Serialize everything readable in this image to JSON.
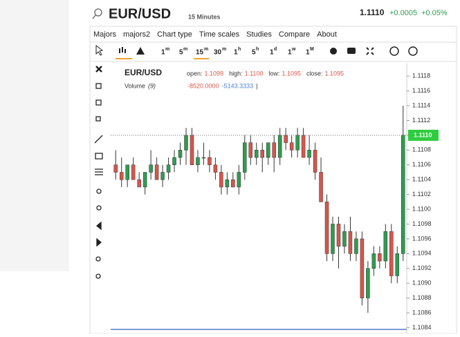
{
  "header": {
    "symbol": "EUR/USD",
    "interval": "15 Minutes",
    "price": "1.1110",
    "change": "+0.0005",
    "change_pct": "+0.05%"
  },
  "menu": [
    "Majors",
    "majors2",
    "Chart type",
    "Time scales",
    "Studies",
    "Compare",
    "About"
  ],
  "intervals": [
    {
      "num": "1",
      "unit": "m"
    },
    {
      "num": "5",
      "unit": "m"
    },
    {
      "num": "15",
      "unit": "m"
    },
    {
      "num": "30",
      "unit": "m"
    },
    {
      "num": "1",
      "unit": "h"
    },
    {
      "num": "5",
      "unit": "h"
    },
    {
      "num": "1",
      "unit": "d"
    },
    {
      "num": "1",
      "unit": "w"
    },
    {
      "num": "1",
      "unit": "M"
    }
  ],
  "legend": {
    "symbol": "EUR/USD",
    "open_label": "open:",
    "open": "1.1099",
    "high_label": "high:",
    "high": "1.1100",
    "low_label": "low:",
    "low": "1.1095",
    "close_label": "close:",
    "close": "1.1095",
    "volume_label": "Volume",
    "volume_param": "(9)",
    "volume_value1": "-8520.0000",
    "volume_value2": "-5143.3333",
    "cursor": "|"
  },
  "chart_data": {
    "type": "candlestick",
    "open": [
      1.1106,
      1.1105,
      1.1104,
      1.1106,
      1.1104,
      1.1103,
      1.1105,
      1.1106,
      1.1104,
      1.1105,
      1.1106,
      1.1107,
      1.1108,
      1.111,
      1.1106,
      1.1107,
      1.1107,
      1.1106,
      1.1105,
      1.1103,
      1.1104,
      1.1103,
      1.1105,
      1.1109,
      1.1107,
      1.1108,
      1.1107,
      1.1109,
      1.1107,
      1.111,
      1.1109,
      1.1108,
      1.111,
      1.1107,
      1.1108,
      1.1105,
      1.1101,
      1.1094,
      1.1098,
      1.1095,
      1.1097,
      1.1094,
      1.1096,
      1.1088,
      1.1092,
      1.1094,
      1.1093,
      1.1097,
      1.1091,
      1.1094
    ],
    "high": [
      1.1108,
      1.1107,
      1.1106,
      1.1107,
      1.1105,
      1.1105,
      1.1108,
      1.1107,
      1.1106,
      1.1107,
      1.1108,
      1.1109,
      1.1111,
      1.1111,
      1.1108,
      1.1109,
      1.1108,
      1.1107,
      1.1106,
      1.1105,
      1.1105,
      1.1106,
      1.111,
      1.111,
      1.1109,
      1.1109,
      1.1109,
      1.111,
      1.1111,
      1.1111,
      1.111,
      1.1111,
      1.1111,
      1.111,
      1.1109,
      1.1107,
      1.1102,
      1.1099,
      1.1099,
      1.1098,
      1.1099,
      1.1097,
      1.1097,
      1.1093,
      1.1095,
      1.1095,
      1.1098,
      1.1098,
      1.1095,
      1.1114
    ],
    "low": [
      1.1104,
      1.1103,
      1.1103,
      1.1104,
      1.1103,
      1.1102,
      1.1104,
      1.1104,
      1.1103,
      1.1104,
      1.1105,
      1.1106,
      1.1106,
      1.1106,
      1.1105,
      1.1106,
      1.1105,
      1.1104,
      1.1102,
      1.1102,
      1.1103,
      1.1102,
      1.1104,
      1.1106,
      1.1106,
      1.1105,
      1.1106,
      1.1105,
      1.1106,
      1.1108,
      1.1107,
      1.1107,
      1.1107,
      1.1106,
      1.1104,
      1.1101,
      1.1093,
      1.1093,
      1.1092,
      1.1094,
      1.1093,
      1.1093,
      1.1087,
      1.1086,
      1.1091,
      1.1092,
      1.1092,
      1.109,
      1.109,
      1.1093
    ],
    "close": [
      1.1105,
      1.1104,
      1.1106,
      1.1104,
      1.1103,
      1.1105,
      1.1106,
      1.1104,
      1.1105,
      1.1106,
      1.1107,
      1.1108,
      1.111,
      1.1106,
      1.1107,
      1.1107,
      1.1106,
      1.1105,
      1.1103,
      1.1104,
      1.1103,
      1.1105,
      1.1109,
      1.1107,
      1.1108,
      1.1107,
      1.1109,
      1.1107,
      1.111,
      1.1109,
      1.1108,
      1.111,
      1.1107,
      1.1108,
      1.1105,
      1.1101,
      1.1094,
      1.1098,
      1.1095,
      1.1097,
      1.1094,
      1.1096,
      1.1088,
      1.1092,
      1.1094,
      1.1093,
      1.1097,
      1.1091,
      1.1094,
      1.111
    ],
    "up_color": "#2f9c50",
    "down_color": "#d6564b",
    "ylim": [
      1.10832,
      1.11197
    ],
    "yticks": [
      1.1084,
      1.1086,
      1.1088,
      {
        "value": 1.109,
        "label": "1.1090"
      },
      1.1092,
      1.1094,
      1.1096,
      1.1098,
      {
        "value": 1.11,
        "label": "1.1100"
      },
      1.1102,
      1.1104,
      1.1106,
      1.1108,
      {
        "value": 1.111,
        "label": "1.1110"
      },
      1.1112,
      1.1114,
      1.1116,
      1.1118
    ],
    "last_price": {
      "value": 1.111,
      "label": "1.1110"
    }
  }
}
